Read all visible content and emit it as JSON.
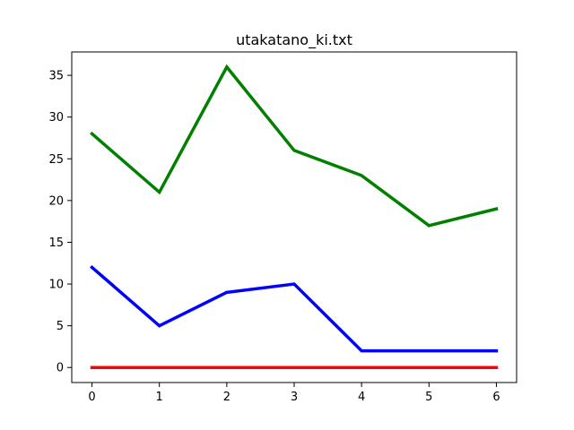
{
  "chart_data": {
    "type": "line",
    "title": "utakatano_ki.txt",
    "xlabel": "",
    "ylabel": "",
    "x": [
      0,
      1,
      2,
      3,
      4,
      5,
      6
    ],
    "xlim": [
      -0.3,
      6.3
    ],
    "ylim": [
      -1.8,
      37.8
    ],
    "xticks": [
      0,
      1,
      2,
      3,
      4,
      5,
      6
    ],
    "yticks": [
      0,
      5,
      10,
      15,
      20,
      25,
      30,
      35
    ],
    "grid": false,
    "legend": "none",
    "series": [
      {
        "color": "#008000",
        "values": [
          28,
          21,
          36,
          26,
          23,
          17,
          19
        ]
      },
      {
        "color": "#0000ff",
        "values": [
          12,
          5,
          9,
          10,
          2,
          2,
          2
        ]
      },
      {
        "color": "#ff0000",
        "values": [
          0,
          0,
          0,
          0,
          0,
          0,
          0
        ]
      }
    ]
  }
}
